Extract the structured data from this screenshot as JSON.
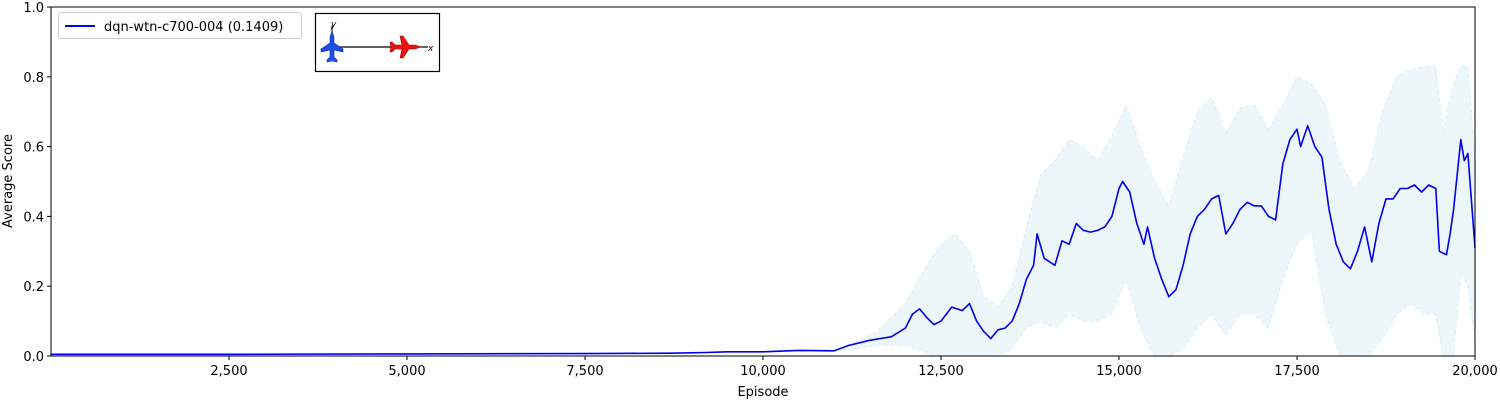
{
  "chart_data": {
    "type": "line",
    "title": "",
    "xlabel": "Episode",
    "ylabel": "Average Score",
    "xlim": [
      0,
      20000
    ],
    "ylim": [
      0,
      1.0
    ],
    "x_ticks": [
      2500,
      5000,
      7500,
      10000,
      12500,
      15000,
      17500,
      20000
    ],
    "x_tick_labels": [
      "2,500",
      "5,000",
      "7,500",
      "10,000",
      "12,500",
      "15,000",
      "17,500",
      "20,000"
    ],
    "y_ticks": [
      0.0,
      0.2,
      0.4,
      0.6,
      0.8,
      1.0
    ],
    "y_tick_labels": [
      "0.0",
      "0.2",
      "0.4",
      "0.6",
      "0.8",
      "1.0"
    ],
    "grid": false,
    "legend_position": "top-left",
    "series": [
      {
        "name": "dqn-wtn-c700-004 (0.1409)",
        "color": "#0000ee",
        "band_color": "#add8e6",
        "points": [
          [
            0,
            0.005
          ],
          [
            2500,
            0.005
          ],
          [
            5000,
            0.006
          ],
          [
            7500,
            0.007
          ],
          [
            8700,
            0.008
          ],
          [
            9200,
            0.01
          ],
          [
            9500,
            0.012
          ],
          [
            10000,
            0.012
          ],
          [
            10500,
            0.016
          ],
          [
            11000,
            0.015
          ],
          [
            11200,
            0.03
          ],
          [
            11500,
            0.045
          ],
          [
            11800,
            0.055
          ],
          [
            12000,
            0.08
          ],
          [
            12100,
            0.12
          ],
          [
            12200,
            0.135
          ],
          [
            12300,
            0.11
          ],
          [
            12400,
            0.09
          ],
          [
            12500,
            0.1
          ],
          [
            12650,
            0.14
          ],
          [
            12800,
            0.13
          ],
          [
            12900,
            0.15
          ],
          [
            13000,
            0.1
          ],
          [
            13100,
            0.07
          ],
          [
            13200,
            0.05
          ],
          [
            13300,
            0.075
          ],
          [
            13400,
            0.08
          ],
          [
            13500,
            0.1
          ],
          [
            13600,
            0.15
          ],
          [
            13700,
            0.22
          ],
          [
            13800,
            0.26
          ],
          [
            13850,
            0.35
          ],
          [
            13950,
            0.28
          ],
          [
            14100,
            0.26
          ],
          [
            14200,
            0.33
          ],
          [
            14300,
            0.32
          ],
          [
            14400,
            0.38
          ],
          [
            14500,
            0.36
          ],
          [
            14600,
            0.355
          ],
          [
            14700,
            0.36
          ],
          [
            14800,
            0.37
          ],
          [
            14900,
            0.4
          ],
          [
            15000,
            0.48
          ],
          [
            15050,
            0.5
          ],
          [
            15150,
            0.47
          ],
          [
            15250,
            0.38
          ],
          [
            15350,
            0.32
          ],
          [
            15400,
            0.37
          ],
          [
            15500,
            0.28
          ],
          [
            15600,
            0.22
          ],
          [
            15700,
            0.17
          ],
          [
            15800,
            0.19
          ],
          [
            15900,
            0.26
          ],
          [
            16000,
            0.35
          ],
          [
            16100,
            0.4
          ],
          [
            16200,
            0.42
          ],
          [
            16300,
            0.45
          ],
          [
            16400,
            0.46
          ],
          [
            16500,
            0.35
          ],
          [
            16600,
            0.38
          ],
          [
            16700,
            0.42
          ],
          [
            16800,
            0.44
          ],
          [
            16900,
            0.43
          ],
          [
            17000,
            0.43
          ],
          [
            17100,
            0.4
          ],
          [
            17200,
            0.39
          ],
          [
            17300,
            0.55
          ],
          [
            17400,
            0.62
          ],
          [
            17500,
            0.65
          ],
          [
            17550,
            0.6
          ],
          [
            17650,
            0.66
          ],
          [
            17750,
            0.6
          ],
          [
            17850,
            0.57
          ],
          [
            17950,
            0.42
          ],
          [
            18050,
            0.32
          ],
          [
            18150,
            0.27
          ],
          [
            18250,
            0.25
          ],
          [
            18350,
            0.3
          ],
          [
            18450,
            0.37
          ],
          [
            18550,
            0.27
          ],
          [
            18650,
            0.38
          ],
          [
            18750,
            0.45
          ],
          [
            18850,
            0.45
          ],
          [
            18950,
            0.48
          ],
          [
            19050,
            0.48
          ],
          [
            19150,
            0.49
          ],
          [
            19250,
            0.47
          ],
          [
            19350,
            0.49
          ],
          [
            19450,
            0.48
          ],
          [
            19500,
            0.3
          ],
          [
            19600,
            0.29
          ],
          [
            19650,
            0.35
          ],
          [
            19700,
            0.42
          ],
          [
            19800,
            0.62
          ],
          [
            19850,
            0.56
          ],
          [
            19900,
            0.58
          ],
          [
            20000,
            0.31
          ]
        ],
        "band": [
          [
            11000,
            0.015,
            0.015
          ],
          [
            11300,
            0.02,
            0.04
          ],
          [
            11600,
            0.03,
            0.07
          ],
          [
            12000,
            0.03,
            0.15
          ],
          [
            12300,
            0.01,
            0.26
          ],
          [
            12500,
            0.0,
            0.32
          ],
          [
            12700,
            0.0,
            0.35
          ],
          [
            12900,
            0.0,
            0.3
          ],
          [
            13100,
            0.0,
            0.17
          ],
          [
            13300,
            0.0,
            0.14
          ],
          [
            13500,
            0.02,
            0.2
          ],
          [
            13700,
            0.08,
            0.37
          ],
          [
            13900,
            0.1,
            0.52
          ],
          [
            14100,
            0.08,
            0.56
          ],
          [
            14300,
            0.12,
            0.62
          ],
          [
            14500,
            0.1,
            0.6
          ],
          [
            14700,
            0.1,
            0.56
          ],
          [
            14900,
            0.12,
            0.63
          ],
          [
            15100,
            0.22,
            0.72
          ],
          [
            15300,
            0.08,
            0.6
          ],
          [
            15500,
            0.0,
            0.5
          ],
          [
            15700,
            0.0,
            0.43
          ],
          [
            15900,
            0.02,
            0.57
          ],
          [
            16100,
            0.08,
            0.7
          ],
          [
            16300,
            0.12,
            0.74
          ],
          [
            16500,
            0.06,
            0.64
          ],
          [
            16700,
            0.12,
            0.71
          ],
          [
            16900,
            0.12,
            0.72
          ],
          [
            17100,
            0.08,
            0.65
          ],
          [
            17300,
            0.22,
            0.72
          ],
          [
            17500,
            0.32,
            0.8
          ],
          [
            17700,
            0.36,
            0.78
          ],
          [
            17900,
            0.12,
            0.72
          ],
          [
            18100,
            0.0,
            0.56
          ],
          [
            18300,
            0.0,
            0.48
          ],
          [
            18500,
            0.0,
            0.53
          ],
          [
            18700,
            0.05,
            0.7
          ],
          [
            18900,
            0.12,
            0.8
          ],
          [
            19100,
            0.15,
            0.82
          ],
          [
            19300,
            0.12,
            0.83
          ],
          [
            19450,
            0.12,
            0.83
          ],
          [
            19550,
            0.0,
            0.64
          ],
          [
            19700,
            0.0,
            0.78
          ],
          [
            19800,
            0.24,
            0.83
          ],
          [
            19900,
            0.2,
            0.83
          ],
          [
            20000,
            0.05,
            0.56
          ]
        ]
      }
    ],
    "inset_icons": [
      "blue-aircraft-icon",
      "red-aircraft-icon"
    ],
    "inset_axis_labels": [
      "y",
      "x"
    ]
  }
}
